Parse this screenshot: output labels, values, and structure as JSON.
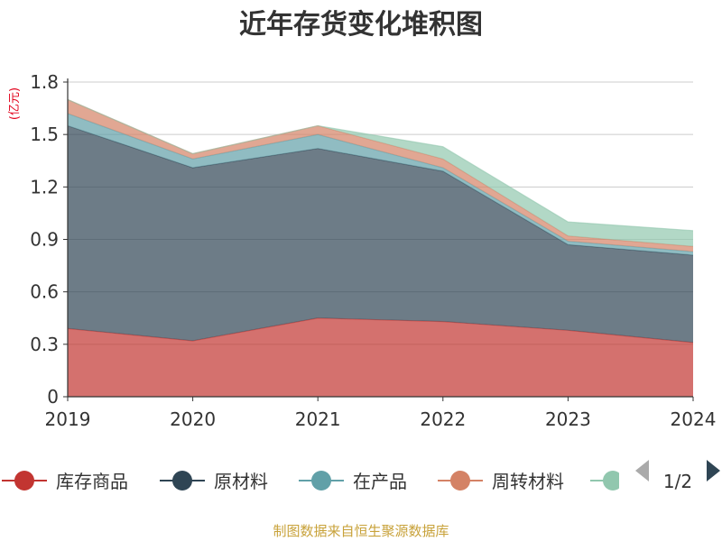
{
  "chart_data": {
    "type": "area",
    "stacked": true,
    "title": "近年存货变化堆积图",
    "unit_label": "(亿元)",
    "categories": [
      "2019",
      "2020",
      "2021",
      "2022",
      "2023",
      "2024"
    ],
    "y_ticks": [
      "0",
      "0.3",
      "0.6",
      "0.9",
      "1.2",
      "1.5",
      "1.8"
    ],
    "ylim": [
      0,
      1.8
    ],
    "grid": true,
    "legend_position": "bottom",
    "series": [
      {
        "name": "库存商品",
        "color": "#c23531",
        "values": [
          0.39,
          0.32,
          0.45,
          0.43,
          0.38,
          0.31
        ]
      },
      {
        "name": "原材料",
        "color": "#2f4554",
        "values": [
          1.16,
          0.99,
          0.97,
          0.86,
          0.49,
          0.5
        ]
      },
      {
        "name": "在产品",
        "color": "#61a0a8",
        "values": [
          0.07,
          0.05,
          0.08,
          0.02,
          0.02,
          0.02
        ]
      },
      {
        "name": "周转材料",
        "color": "#d48265",
        "values": [
          0.08,
          0.03,
          0.05,
          0.05,
          0.03,
          0.03
        ]
      },
      {
        "name": "",
        "color": "#91c7ae",
        "values": [
          0.0,
          0.0,
          0.0,
          0.07,
          0.08,
          0.09
        ]
      }
    ],
    "legend_page": "1/2",
    "source": "制图数据来自恒生聚源数据库"
  }
}
